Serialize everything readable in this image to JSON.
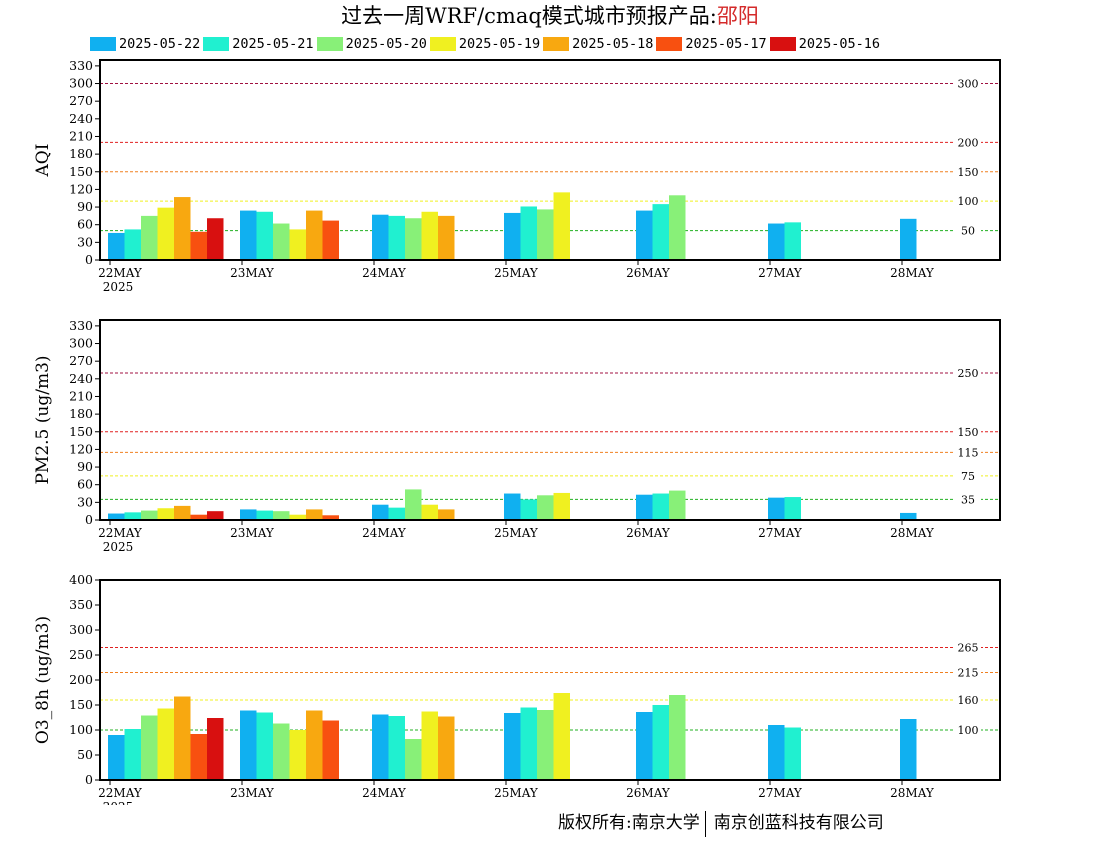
{
  "title": {
    "main": "过去一周WRF/cmaq模式城市预报产品:",
    "city": "邵阳",
    "city_color": "#d42a2a"
  },
  "legend": {
    "items": [
      {
        "label": "2025-05-22",
        "color": "#10b0f0"
      },
      {
        "label": "2025-05-21",
        "color": "#20f0d0"
      },
      {
        "label": "2025-05-20",
        "color": "#88f078"
      },
      {
        "label": "2025-05-19",
        "color": "#f0f020"
      },
      {
        "label": "2025-05-18",
        "color": "#f8a810"
      },
      {
        "label": "2025-05-17",
        "color": "#f85010"
      },
      {
        "label": "2025-05-16",
        "color": "#d81010"
      }
    ]
  },
  "copyright": {
    "left": "版权所有:南京大学",
    "right": "南京创蓝科技有限公司"
  },
  "chart_data": [
    {
      "type": "bar",
      "ylabel": "AQI",
      "ylim": [
        0,
        340
      ],
      "yticks": [
        0,
        30,
        60,
        90,
        120,
        150,
        180,
        210,
        240,
        270,
        300,
        330
      ],
      "categories": [
        "22MAY",
        "23MAY",
        "24MAY",
        "25MAY",
        "26MAY",
        "27MAY",
        "28MAY"
      ],
      "year_label": "2025",
      "reference_lines": [
        {
          "value": 300,
          "label": "300",
          "color": "#a01040"
        },
        {
          "value": 200,
          "label": "200",
          "color": "#e02020"
        },
        {
          "value": 150,
          "label": "150",
          "color": "#f08020"
        },
        {
          "value": 100,
          "label": "100",
          "color": "#f0f020"
        },
        {
          "value": 50,
          "label": "50",
          "color": "#20b020"
        }
      ],
      "series": [
        {
          "name": "2025-05-22",
          "values": [
            46,
            84,
            77,
            80,
            84,
            62,
            70
          ]
        },
        {
          "name": "2025-05-21",
          "values": [
            52,
            82,
            75,
            91,
            95,
            64,
            null
          ]
        },
        {
          "name": "2025-05-20",
          "values": [
            75,
            62,
            71,
            86,
            110,
            null,
            null
          ]
        },
        {
          "name": "2025-05-19",
          "values": [
            89,
            52,
            82,
            115,
            null,
            null,
            null
          ]
        },
        {
          "name": "2025-05-18",
          "values": [
            107,
            84,
            75,
            null,
            null,
            null,
            null
          ]
        },
        {
          "name": "2025-05-17",
          "values": [
            48,
            67,
            null,
            null,
            null,
            null,
            null
          ]
        },
        {
          "name": "2025-05-16",
          "values": [
            71,
            null,
            null,
            null,
            null,
            null,
            null
          ]
        }
      ]
    },
    {
      "type": "bar",
      "ylabel": "PM2.5 (ug/m3)",
      "ylim": [
        0,
        340
      ],
      "yticks": [
        0,
        30,
        60,
        90,
        120,
        150,
        180,
        210,
        240,
        270,
        300,
        330
      ],
      "categories": [
        "22MAY",
        "23MAY",
        "24MAY",
        "25MAY",
        "26MAY",
        "27MAY",
        "28MAY"
      ],
      "year_label": "2025",
      "reference_lines": [
        {
          "value": 250,
          "label": "250",
          "color": "#a01040"
        },
        {
          "value": 150,
          "label": "150",
          "color": "#e02020"
        },
        {
          "value": 115,
          "label": "115",
          "color": "#f08020"
        },
        {
          "value": 75,
          "label": "75",
          "color": "#f0f020"
        },
        {
          "value": 35,
          "label": "35",
          "color": "#20b020"
        }
      ],
      "series": [
        {
          "name": "2025-05-22",
          "values": [
            11,
            18,
            26,
            45,
            43,
            38,
            12
          ]
        },
        {
          "name": "2025-05-21",
          "values": [
            13,
            16,
            21,
            35,
            45,
            39,
            null
          ]
        },
        {
          "name": "2025-05-20",
          "values": [
            16,
            15,
            52,
            42,
            50,
            null,
            null
          ]
        },
        {
          "name": "2025-05-19",
          "values": [
            20,
            9,
            26,
            46,
            null,
            null,
            null
          ]
        },
        {
          "name": "2025-05-18",
          "values": [
            24,
            18,
            18,
            null,
            null,
            null,
            null
          ]
        },
        {
          "name": "2025-05-17",
          "values": [
            9,
            8,
            null,
            null,
            null,
            null,
            null
          ]
        },
        {
          "name": "2025-05-16",
          "values": [
            15,
            null,
            null,
            null,
            null,
            null,
            null
          ]
        }
      ]
    },
    {
      "type": "bar",
      "ylabel": "O3_8h (ug/m3)",
      "ylim": [
        0,
        400
      ],
      "yticks": [
        0,
        50,
        100,
        150,
        200,
        250,
        300,
        350,
        400
      ],
      "categories": [
        "22MAY",
        "23MAY",
        "24MAY",
        "25MAY",
        "26MAY",
        "27MAY",
        "28MAY"
      ],
      "year_label": "2025",
      "reference_lines": [
        {
          "value": 265,
          "label": "265",
          "color": "#e02020"
        },
        {
          "value": 215,
          "label": "215",
          "color": "#f08020"
        },
        {
          "value": 160,
          "label": "160",
          "color": "#f0f020"
        },
        {
          "value": 100,
          "label": "100",
          "color": "#20b020"
        }
      ],
      "series": [
        {
          "name": "2025-05-22",
          "values": [
            90,
            139,
            131,
            134,
            136,
            110,
            122
          ]
        },
        {
          "name": "2025-05-21",
          "values": [
            102,
            135,
            128,
            145,
            150,
            105,
            null
          ]
        },
        {
          "name": "2025-05-20",
          "values": [
            129,
            113,
            82,
            140,
            170,
            null,
            null
          ]
        },
        {
          "name": "2025-05-19",
          "values": [
            143,
            100,
            137,
            174,
            null,
            null,
            null
          ]
        },
        {
          "name": "2025-05-18",
          "values": [
            167,
            139,
            127,
            null,
            null,
            null,
            null
          ]
        },
        {
          "name": "2025-05-17",
          "values": [
            92,
            119,
            null,
            null,
            null,
            null,
            null
          ]
        },
        {
          "name": "2025-05-16",
          "values": [
            124,
            null,
            null,
            null,
            null,
            null,
            null
          ]
        }
      ]
    }
  ]
}
